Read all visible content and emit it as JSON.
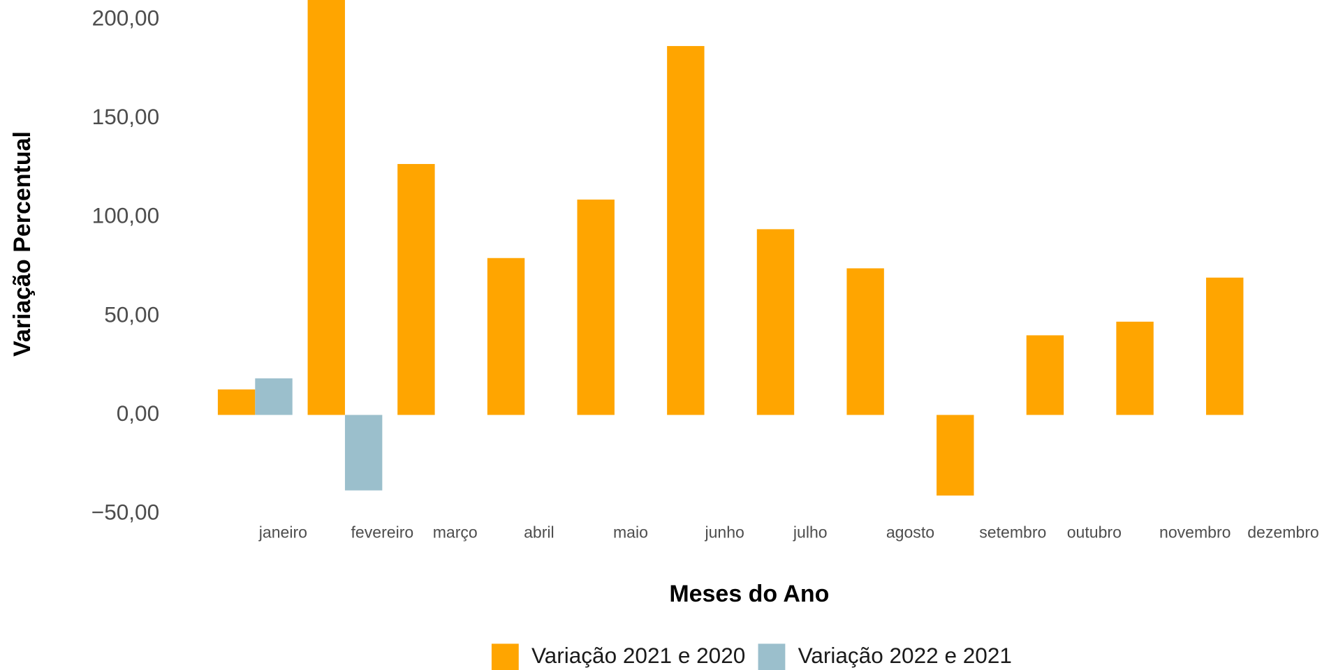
{
  "chart_data": {
    "type": "bar",
    "x_label": "Meses do Ano",
    "y_label": "Variação Percentual",
    "categories": [
      "janeiro",
      "fevereiro",
      "março",
      "abril",
      "maio",
      "junho",
      "julho",
      "agosto",
      "setembro",
      "outubro",
      "novembro",
      "dezembro"
    ],
    "series": [
      {
        "name": "Variação 2021 e 2020",
        "color": "#FFA500",
        "values": [
          12.9,
          230,
          127.0,
          79.4,
          109.0,
          186.7,
          94.0,
          74.2,
          -40.8,
          40.3,
          47.2,
          69.5
        ]
      },
      {
        "name": "Variação 2022 e 2021",
        "color": "#9BBFCC",
        "values": [
          18.5,
          -38.2,
          null,
          null,
          null,
          null,
          null,
          null,
          null,
          null,
          null,
          null
        ]
      }
    ],
    "ylim": [
      -56,
      210
    ],
    "yticks": [
      {
        "value": -50,
        "label": "−50,00"
      },
      {
        "value": 0,
        "label": "0,00"
      },
      {
        "value": 50,
        "label": "50,00"
      },
      {
        "value": 100,
        "label": "100,00"
      },
      {
        "value": 150,
        "label": "150,00"
      },
      {
        "value": 200,
        "label": "200,00"
      }
    ],
    "grid": false,
    "legend": "bottom"
  }
}
